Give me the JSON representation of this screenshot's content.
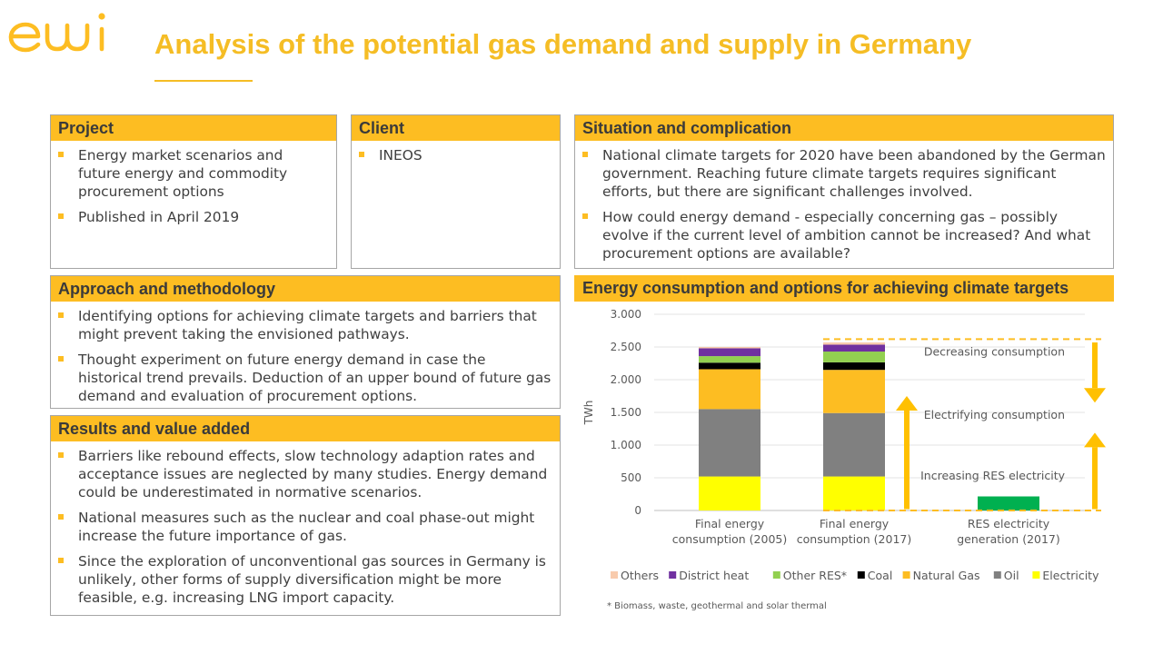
{
  "brand": {
    "logo_text": "ewi",
    "accent": "#fdbd22",
    "title_color": "#f5bd25"
  },
  "title": "Analysis of the potential gas demand and supply in Germany",
  "project": {
    "heading": "Project",
    "items": [
      "Energy market scenarios and future energy and commodity procurement options",
      "Published in April 2019"
    ]
  },
  "client": {
    "heading": "Client",
    "items": [
      "INEOS"
    ]
  },
  "situation": {
    "heading": "Situation and complication",
    "items": [
      "National climate targets for 2020 have been abandoned by the German government. Reaching future climate targets requires significant efforts, but there are significant challenges involved.",
      "How could energy demand - especially concerning gas – possibly evolve if the current level of ambition cannot be increased? And what procurement options are available?"
    ]
  },
  "approach": {
    "heading": "Approach and methodology",
    "items": [
      "Identifying options for achieving climate targets and barriers that might prevent taking the envisioned pathways.",
      "Thought experiment on future energy demand in case the historical trend prevails. Deduction of an upper bound of future gas demand and evaluation of procurement options."
    ]
  },
  "results": {
    "heading": "Results and value added",
    "items": [
      "Barriers like rebound effects, slow technology adaption rates and acceptance issues are neglected by many studies. Energy demand could be underestimated in normative scenarios.",
      "National measures such as the nuclear and coal phase-out might increase the future importance of gas.",
      "Since the exploration of unconventional gas sources in Germany is unlikely, other forms of supply diversification might be more feasible, e.g. increasing LNG import capacity."
    ]
  },
  "chart_data": {
    "type": "bar",
    "stacked": true,
    "title": "Energy consumption and options for achieving climate targets",
    "ylabel": "TWh",
    "ylim": [
      0,
      3000
    ],
    "yticks": [
      0,
      500,
      1000,
      1500,
      2000,
      2500,
      3000
    ],
    "ytick_labels": [
      "0",
      "500",
      "1.000",
      "1.500",
      "2.000",
      "2.500",
      "3.000"
    ],
    "grid": true,
    "legend_position": "bottom",
    "categories": [
      [
        "Final energy",
        "consumption (2005)"
      ],
      [
        "Final energy",
        "consumption (2017)"
      ],
      [
        "RES electricity",
        "generation (2017)"
      ]
    ],
    "series": [
      {
        "name": "Electricity",
        "color": "#ffff00",
        "values": [
          520,
          520,
          0
        ]
      },
      {
        "name": "Oil",
        "color": "#808080",
        "values": [
          1030,
          970,
          0
        ]
      },
      {
        "name": "Natural Gas",
        "color": "#fdbd22",
        "values": [
          610,
          660,
          0
        ]
      },
      {
        "name": "Coal",
        "color": "#000000",
        "values": [
          100,
          115,
          0
        ]
      },
      {
        "name": "Other RES*",
        "color": "#92d050",
        "values": [
          100,
          165,
          0
        ]
      },
      {
        "name": "District heat",
        "color": "#7030a0",
        "values": [
          120,
          105,
          0
        ]
      },
      {
        "name": "Others",
        "color": "#f8cbad",
        "values": [
          20,
          35,
          0
        ]
      },
      {
        "name": "RES electricity",
        "color": "#00b050",
        "values": [
          0,
          0,
          215
        ]
      }
    ],
    "legend": [
      "Others",
      "District heat",
      "Other RES*",
      "Coal",
      "Natural Gas",
      "Oil",
      "Electricity"
    ],
    "reference_lines": [
      2620,
      0
    ],
    "annotations": [
      {
        "text": "Decreasing consumption",
        "value": 2310,
        "arrow": "down"
      },
      {
        "text": "Electrifying consumption",
        "value": 1350,
        "arrow": "up"
      },
      {
        "text": "Increasing RES electricity",
        "value": 415,
        "arrow": "up"
      }
    ],
    "footnote": "* Biomass, waste, geothermal and solar thermal"
  }
}
